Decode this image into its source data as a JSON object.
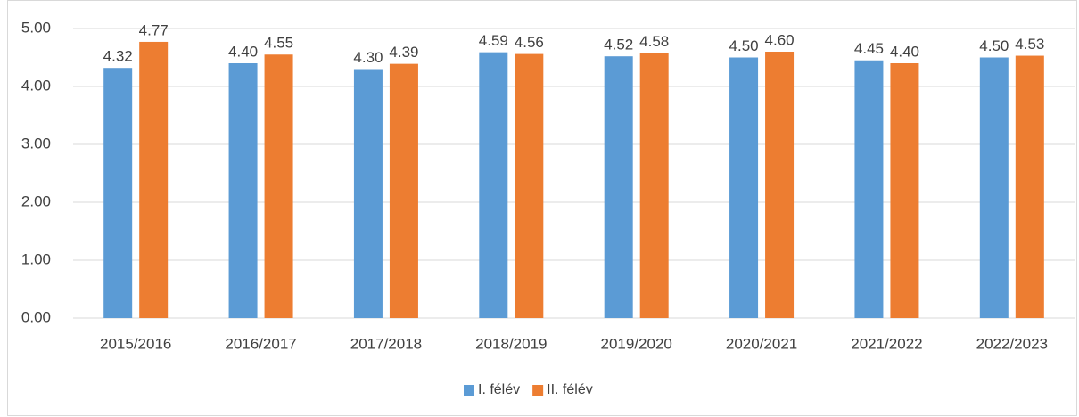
{
  "chart_data": {
    "type": "bar",
    "categories": [
      "2015/2016",
      "2016/2017",
      "2017/2018",
      "2018/2019",
      "2019/2020",
      "2020/2021",
      "2021/2022",
      "2022/2023"
    ],
    "series": [
      {
        "name": "I. félév",
        "color": "#5b9bd5",
        "values": [
          4.32,
          4.4,
          4.3,
          4.59,
          4.52,
          4.5,
          4.45,
          4.5
        ],
        "value_labels": [
          "4.32",
          "4.40",
          "4.30",
          "4.59",
          "4.52",
          "4.50",
          "4.45",
          "4.50"
        ]
      },
      {
        "name": "II. félév",
        "color": "#ed7d31",
        "values": [
          4.77,
          4.55,
          4.39,
          4.56,
          4.58,
          4.6,
          4.4,
          4.53
        ],
        "value_labels": [
          "4.77",
          "4.55",
          "4.39",
          "4.56",
          "4.58",
          "4.60",
          "4.40",
          "4.53"
        ]
      }
    ],
    "ylim": [
      0,
      5
    ],
    "yticks": [
      {
        "value": 0,
        "label": "0.00"
      },
      {
        "value": 1,
        "label": "1.00"
      },
      {
        "value": 2,
        "label": "2.00"
      },
      {
        "value": 3,
        "label": "3.00"
      },
      {
        "value": 4,
        "label": "4.00"
      },
      {
        "value": 5,
        "label": "5.00"
      }
    ],
    "grid": true,
    "legend": "bottom"
  }
}
